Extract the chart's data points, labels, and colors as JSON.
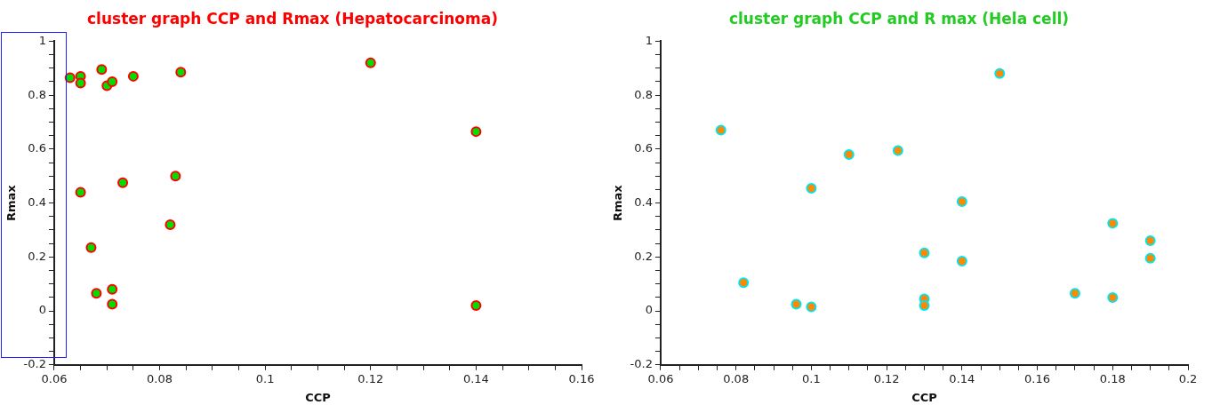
{
  "chart_data": [
    {
      "type": "scatter",
      "title": "cluster graph CCP and Rmax (Hepatocarcinoma)",
      "xlabel": "CCP",
      "ylabel": "Rmax",
      "marker": "circle",
      "grid": false,
      "legend": false,
      "series": [
        {
          "color": "#00dd00",
          "x": [
            0.063,
            0.065,
            0.065,
            0.069,
            0.07,
            0.071,
            0.075,
            0.084,
            0.12,
            0.14,
            0.065,
            0.073,
            0.083,
            0.082,
            0.067,
            0.068,
            0.071,
            0.071,
            0.14
          ],
          "values": [
            0.865,
            0.87,
            0.845,
            0.895,
            0.835,
            0.85,
            0.87,
            0.885,
            0.92,
            0.665,
            0.44,
            0.475,
            0.5,
            0.32,
            0.235,
            0.065,
            0.08,
            0.025,
            0.02
          ]
        }
      ],
      "xlim": [
        0.06,
        0.16
      ],
      "ylim": [
        -0.2,
        1
      ],
      "xticks": [
        0.06,
        {
          "value": 0.065,
          "label": null
        },
        {
          "value": 0.07,
          "label": null
        },
        {
          "value": 0.075,
          "label": null
        },
        0.08,
        {
          "value": 0.085,
          "label": null
        },
        {
          "value": 0.09,
          "label": null
        },
        {
          "value": 0.095,
          "label": null
        },
        0.1,
        {
          "value": 0.105,
          "label": null
        },
        {
          "value": 0.11,
          "label": null
        },
        {
          "value": 0.115,
          "label": null
        },
        0.12,
        {
          "value": 0.125,
          "label": null
        },
        {
          "value": 0.13,
          "label": null
        },
        {
          "value": 0.135,
          "label": null
        },
        0.14,
        {
          "value": 0.145,
          "label": null
        },
        {
          "value": 0.15,
          "label": null
        },
        {
          "value": 0.155,
          "label": null
        },
        0.16
      ],
      "yticks": [
        -0.2,
        {
          "value": -0.15,
          "label": null
        },
        {
          "value": -0.1,
          "label": null
        },
        {
          "value": -0.05,
          "label": null
        },
        0,
        {
          "value": 0.05,
          "label": null
        },
        {
          "value": 0.1,
          "label": null
        },
        {
          "value": 0.15,
          "label": null
        },
        0.2,
        {
          "value": 0.25,
          "label": null
        },
        {
          "value": 0.3,
          "label": null
        },
        {
          "value": 0.35,
          "label": null
        },
        0.4,
        {
          "value": 0.45,
          "label": null
        },
        {
          "value": 0.5,
          "label": null
        },
        {
          "value": 0.55,
          "label": null
        },
        0.6,
        {
          "value": 0.65,
          "label": null
        },
        {
          "value": 0.7,
          "label": null
        },
        {
          "value": 0.75,
          "label": null
        },
        0.8,
        {
          "value": 0.85,
          "label": null
        },
        {
          "value": 0.9,
          "label": null
        },
        {
          "value": 0.95,
          "label": null
        },
        1
      ]
    },
    {
      "type": "scatter",
      "title": "cluster graph CCP and R max (Hela cell)",
      "xlabel": "CCP",
      "ylabel": "Rmax",
      "marker": "circle",
      "grid": false,
      "legend": false,
      "series": [
        {
          "color": "#ff8800",
          "x": [
            0.076,
            0.082,
            0.096,
            0.1,
            0.1,
            0.11,
            0.123,
            0.13,
            0.13,
            0.13,
            0.14,
            0.14,
            0.15,
            0.17,
            0.18,
            0.18,
            0.19,
            0.19
          ],
          "values": [
            0.67,
            0.105,
            0.025,
            0.015,
            0.455,
            0.58,
            0.595,
            0.215,
            0.045,
            0.02,
            0.405,
            0.185,
            0.88,
            0.065,
            0.325,
            0.05,
            0.26,
            0.195
          ]
        }
      ],
      "xlim": [
        0.06,
        0.2
      ],
      "ylim": [
        -0.2,
        1
      ],
      "xticks": [
        0.06,
        {
          "value": 0.065,
          "label": null
        },
        {
          "value": 0.07,
          "label": null
        },
        {
          "value": 0.075,
          "label": null
        },
        0.08,
        {
          "value": 0.085,
          "label": null
        },
        {
          "value": 0.09,
          "label": null
        },
        {
          "value": 0.095,
          "label": null
        },
        0.1,
        {
          "value": 0.105,
          "label": null
        },
        {
          "value": 0.11,
          "label": null
        },
        {
          "value": 0.115,
          "label": null
        },
        0.12,
        {
          "value": 0.125,
          "label": null
        },
        {
          "value": 0.13,
          "label": null
        },
        {
          "value": 0.135,
          "label": null
        },
        0.14,
        {
          "value": 0.145,
          "label": null
        },
        {
          "value": 0.15,
          "label": null
        },
        {
          "value": 0.155,
          "label": null
        },
        0.16,
        {
          "value": 0.165,
          "label": null
        },
        {
          "value": 0.17,
          "label": null
        },
        {
          "value": 0.175,
          "label": null
        },
        0.18,
        {
          "value": 0.185,
          "label": null
        },
        {
          "value": 0.19,
          "label": null
        },
        {
          "value": 0.195,
          "label": null
        },
        0.2
      ],
      "yticks": [
        -0.2,
        {
          "value": -0.15,
          "label": null
        },
        {
          "value": -0.1,
          "label": null
        },
        {
          "value": -0.05,
          "label": null
        },
        0,
        {
          "value": 0.05,
          "label": null
        },
        {
          "value": 0.1,
          "label": null
        },
        {
          "value": 0.15,
          "label": null
        },
        0.2,
        {
          "value": 0.25,
          "label": null
        },
        {
          "value": 0.3,
          "label": null
        },
        {
          "value": 0.35,
          "label": null
        },
        0.4,
        {
          "value": 0.45,
          "label": null
        },
        {
          "value": 0.5,
          "label": null
        },
        {
          "value": 0.55,
          "label": null
        },
        0.6,
        {
          "value": 0.65,
          "label": null
        },
        {
          "value": 0.7,
          "label": null
        },
        {
          "value": 0.75,
          "label": null
        },
        0.8,
        {
          "value": 0.85,
          "label": null
        },
        {
          "value": 0.9,
          "label": null
        },
        {
          "value": 0.95,
          "label": null
        },
        1
      ]
    }
  ]
}
